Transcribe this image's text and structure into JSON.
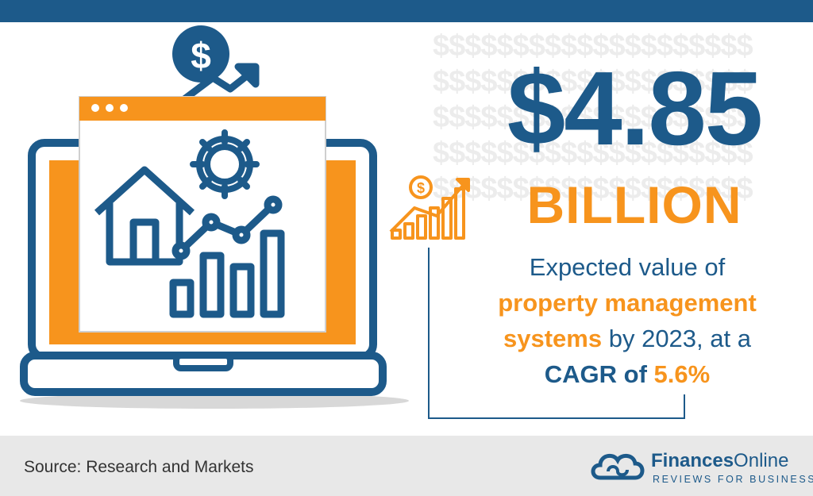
{
  "headline": {
    "amount": "$4.85",
    "unit": "BILLION"
  },
  "description": {
    "line1": "Expected value of",
    "highlight": "property management",
    "highlight2": "systems",
    "line3_rest": " by 2023, at a",
    "cagr_label": "CAGR of ",
    "cagr_value": "5.6%"
  },
  "footer": {
    "source": "Source: Research and Markets",
    "logo_name_bold": "Finances",
    "logo_name_light": "Online",
    "logo_tagline": "REVIEWS FOR BUSINESS"
  },
  "background_pattern": "$$$$$$$$$$$$$$$$$$$$",
  "colors": {
    "navy": "#1d5a8a",
    "orange": "#f7941d",
    "footer_bg": "#e8e8e8"
  },
  "icons": [
    "dollar-coin-icon",
    "trend-arrow-icon",
    "laptop-icon",
    "browser-window-icon",
    "gear-icon",
    "house-icon",
    "bar-chart-icon",
    "growth-chart-icon",
    "cloud-logo-icon"
  ]
}
